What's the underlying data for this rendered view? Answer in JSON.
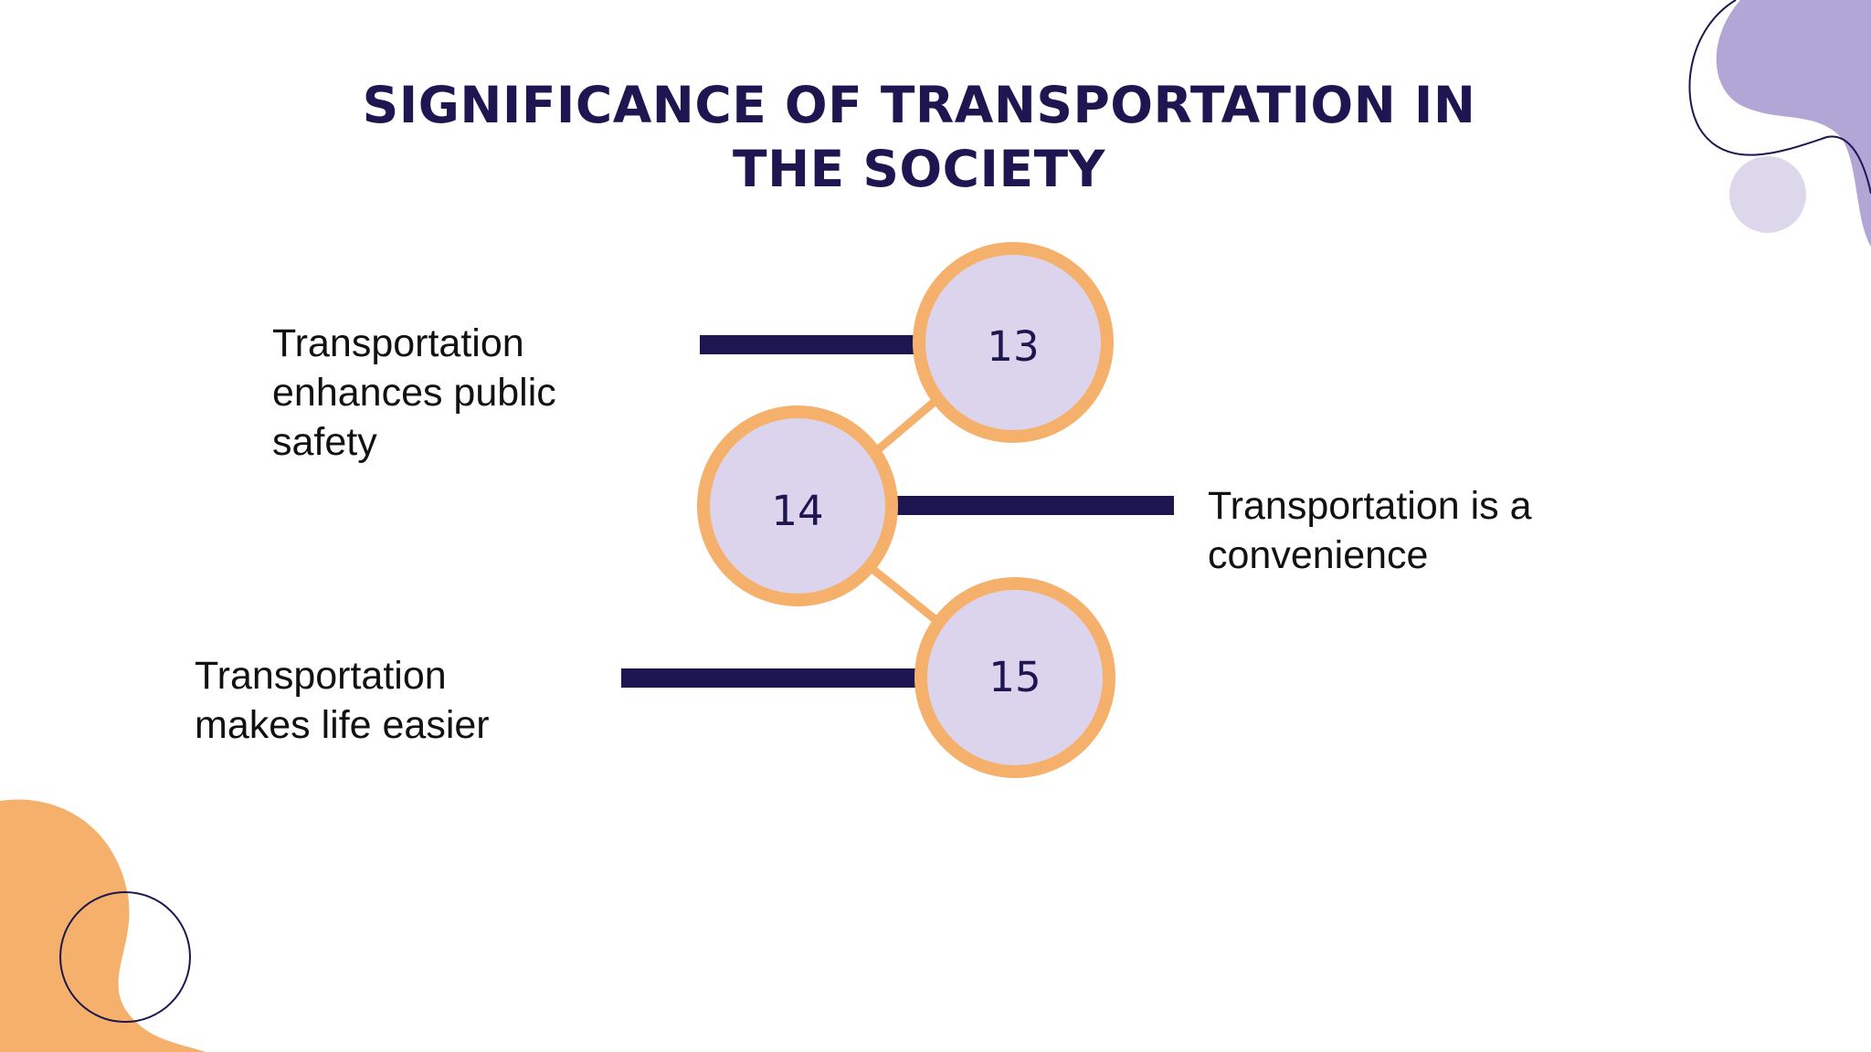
{
  "title": {
    "line1": "SIGNIFICANCE OF TRANSPORTATION IN",
    "line2": "THE SOCIETY"
  },
  "nodes": [
    {
      "number": "13",
      "label_lines": [
        "Transportation",
        "enhances public",
        "safety"
      ]
    },
    {
      "number": "14",
      "label_lines": [
        "Transportation is a",
        "convenience"
      ]
    },
    {
      "number": "15",
      "label_lines": [
        "Transportation",
        "makes life easier"
      ]
    }
  ],
  "colors": {
    "navy": "#1e1650",
    "orange": "#f5b06b",
    "lavender": "#dcd4ec",
    "purple": "#b1a6d6",
    "light_purple": "#ddd7ec"
  }
}
